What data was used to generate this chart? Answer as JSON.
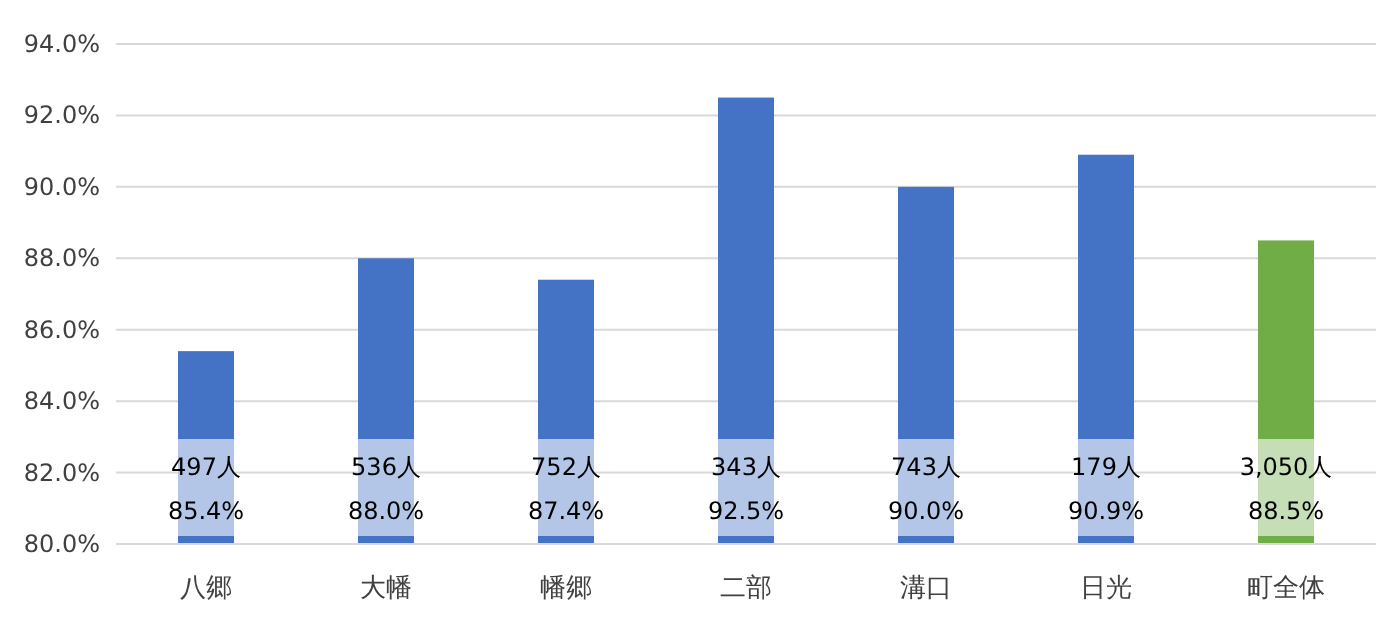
{
  "chart_data": {
    "type": "bar",
    "categories": [
      "八郷",
      "大幡",
      "幡郷",
      "二部",
      "溝口",
      "日光",
      "町全体"
    ],
    "values": [
      85.4,
      88.0,
      87.4,
      92.5,
      90.0,
      90.9,
      88.5
    ],
    "colors": [
      "#4472c4",
      "#4472c4",
      "#4472c4",
      "#4472c4",
      "#4472c4",
      "#4472c4",
      "#70ad47"
    ],
    "value_labels": [
      "497人\n85.4%",
      "536人\n88.0%",
      "752人\n87.4%",
      "343人\n92.5%",
      "743人\n90.0%",
      "179人\n90.9%",
      "3,050人\n88.5%"
    ],
    "ylim": [
      80,
      94
    ],
    "yticks": [
      {
        "value": 80,
        "label": "80.0%"
      },
      {
        "value": 82,
        "label": "82.0%"
      },
      {
        "value": 84,
        "label": "84.0%"
      },
      {
        "value": 86,
        "label": "86.0%"
      },
      {
        "value": 88,
        "label": "88.0%"
      },
      {
        "value": 90,
        "label": "90.0%"
      },
      {
        "value": 92,
        "label": "92.0%"
      },
      {
        "value": 94,
        "label": "94.0%"
      }
    ],
    "grid": "y"
  }
}
